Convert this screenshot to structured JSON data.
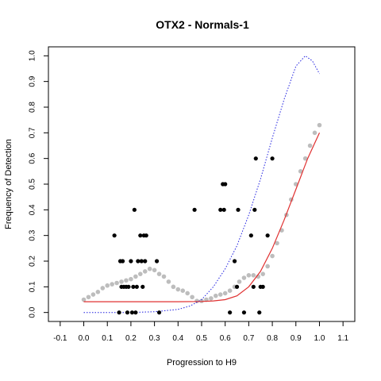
{
  "chart_data": {
    "type": "scatter",
    "title": "OTX2 - Normals-1",
    "xlabel": "Progression to H9",
    "ylabel": "Frequency of Detection",
    "xlim": [
      -0.15,
      1.15
    ],
    "ylim": [
      -0.035,
      1.035
    ],
    "x_ticks": [
      -0.1,
      0.0,
      0.1,
      0.2,
      0.3,
      0.4,
      0.5,
      0.6,
      0.7,
      0.8,
      0.9,
      1.0,
      1.1
    ],
    "x_tick_labels": [
      "-0.1",
      "0.0",
      "0.1",
      "0.2",
      "0.3",
      "0.4",
      "0.5",
      "0.6",
      "0.7",
      "0.8",
      "0.9",
      "1.0",
      "1.1"
    ],
    "y_ticks": [
      0.0,
      0.1,
      0.2,
      0.3,
      0.4,
      0.5,
      0.6,
      0.7,
      0.8,
      0.9,
      1.0
    ],
    "y_tick_labels": [
      "0.0",
      "0.1",
      "0.2",
      "0.3",
      "0.4",
      "0.5",
      "0.6",
      "0.7",
      "0.8",
      "0.9",
      "1.0"
    ],
    "grid": false,
    "legend": "none",
    "colors": {
      "observed": "#000000",
      "smoothed": "#bdbdbd",
      "fit": "#e03030",
      "reference": "#2020e0"
    },
    "series": [
      {
        "role": "observed",
        "style": "points",
        "x": [
          0.13,
          0.15,
          0.155,
          0.16,
          0.165,
          0.17,
          0.18,
          0.185,
          0.19,
          0.2,
          0.205,
          0.21,
          0.215,
          0.22,
          0.225,
          0.23,
          0.24,
          0.245,
          0.25,
          0.255,
          0.26,
          0.265,
          0.31,
          0.32,
          0.47,
          0.58,
          0.59,
          0.595,
          0.6,
          0.62,
          0.64,
          0.65,
          0.655,
          0.68,
          0.71,
          0.72,
          0.725,
          0.73,
          0.745,
          0.75,
          0.76,
          0.78,
          0.8
        ],
        "y": [
          0.3,
          0.0,
          0.2,
          0.1,
          0.2,
          0.1,
          0.1,
          0.0,
          0.1,
          0.2,
          0.0,
          0.1,
          0.4,
          0.0,
          0.1,
          0.2,
          0.3,
          0.2,
          0.1,
          0.3,
          0.2,
          0.3,
          0.2,
          0.0,
          0.4,
          0.4,
          0.5,
          0.4,
          0.5,
          0.0,
          0.2,
          0.1,
          0.4,
          0.0,
          0.3,
          0.1,
          0.4,
          0.6,
          0.0,
          0.1,
          0.1,
          0.3,
          0.6
        ]
      },
      {
        "role": "smoothed",
        "style": "points",
        "x": [
          0.0,
          0.02,
          0.04,
          0.06,
          0.08,
          0.1,
          0.12,
          0.14,
          0.16,
          0.18,
          0.2,
          0.22,
          0.24,
          0.26,
          0.28,
          0.3,
          0.32,
          0.34,
          0.36,
          0.38,
          0.4,
          0.42,
          0.44,
          0.46,
          0.48,
          0.5,
          0.52,
          0.54,
          0.56,
          0.58,
          0.6,
          0.62,
          0.64,
          0.66,
          0.68,
          0.7,
          0.72,
          0.74,
          0.76,
          0.78,
          0.8,
          0.82,
          0.84,
          0.86,
          0.88,
          0.9,
          0.92,
          0.94,
          0.96,
          0.98,
          1.0
        ],
        "y": [
          0.05,
          0.06,
          0.07,
          0.08,
          0.095,
          0.105,
          0.11,
          0.115,
          0.12,
          0.125,
          0.13,
          0.14,
          0.15,
          0.16,
          0.17,
          0.165,
          0.15,
          0.14,
          0.12,
          0.1,
          0.09,
          0.085,
          0.075,
          0.06,
          0.045,
          0.045,
          0.05,
          0.055,
          0.065,
          0.07,
          0.075,
          0.085,
          0.1,
          0.12,
          0.135,
          0.145,
          0.145,
          0.14,
          0.15,
          0.18,
          0.22,
          0.27,
          0.32,
          0.38,
          0.44,
          0.5,
          0.55,
          0.6,
          0.65,
          0.7,
          0.73
        ]
      },
      {
        "role": "fit",
        "style": "line",
        "x": [
          0.0,
          0.1,
          0.2,
          0.3,
          0.4,
          0.5,
          0.55,
          0.6,
          0.65,
          0.7,
          0.75,
          0.8,
          0.85,
          0.9,
          0.95,
          1.0
        ],
        "y": [
          0.042,
          0.042,
          0.042,
          0.042,
          0.042,
          0.043,
          0.045,
          0.05,
          0.065,
          0.1,
          0.16,
          0.25,
          0.36,
          0.48,
          0.6,
          0.7
        ]
      },
      {
        "role": "reference",
        "style": "dotted-line",
        "x": [
          0.0,
          0.1,
          0.2,
          0.3,
          0.4,
          0.45,
          0.5,
          0.55,
          0.6,
          0.65,
          0.7,
          0.75,
          0.8,
          0.85,
          0.9,
          0.94,
          0.97,
          1.0
        ],
        "y": [
          0.0,
          0.0,
          0.0,
          0.003,
          0.012,
          0.025,
          0.05,
          0.1,
          0.17,
          0.26,
          0.38,
          0.52,
          0.68,
          0.83,
          0.96,
          1.0,
          0.98,
          0.93
        ]
      }
    ]
  }
}
